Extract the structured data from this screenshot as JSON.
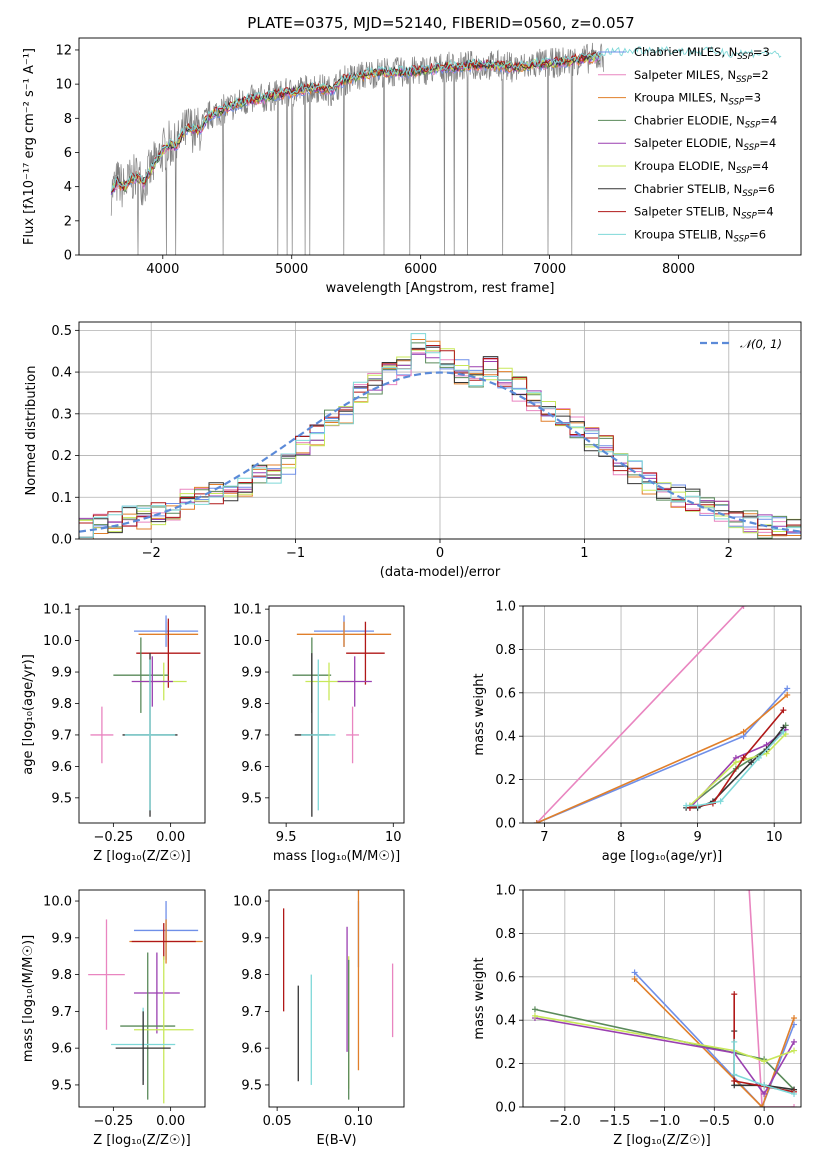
{
  "title": "PLATE=0375, MJD=52140, FIBERID=0560, z=0.057",
  "colors": {
    "chabrier_miles": "#6f8fe8",
    "salpeter_miles": "#e985c0",
    "kroupa_miles": "#e07f2a",
    "chabrier_elodie": "#5a8a5a",
    "salpeter_elodie": "#9a3fb0",
    "kroupa_elodie": "#c8e85a",
    "chabrier_stelib": "#333333",
    "salpeter_stelib": "#b01818",
    "kroupa_stelib": "#7ed8d8",
    "data": "#808080",
    "normal": "#5b8ad8"
  },
  "legend1": [
    {
      "key": "chabrier_miles",
      "label": "Chabrier MILES, N",
      "sub": "SSP",
      "suffix": "=3"
    },
    {
      "key": "salpeter_miles",
      "label": "Salpeter MILES, N",
      "sub": "SSP",
      "suffix": "=2"
    },
    {
      "key": "kroupa_miles",
      "label": "Kroupa MILES, N",
      "sub": "SSP",
      "suffix": "=3"
    },
    {
      "key": "chabrier_elodie",
      "label": "Chabrier ELODIE, N",
      "sub": "SSP",
      "suffix": "=4"
    },
    {
      "key": "salpeter_elodie",
      "label": "Salpeter ELODIE, N",
      "sub": "SSP",
      "suffix": "=4"
    },
    {
      "key": "kroupa_elodie",
      "label": "Kroupa ELODIE, N",
      "sub": "SSP",
      "suffix": "=4"
    },
    {
      "key": "chabrier_stelib",
      "label": "Chabrier STELIB, N",
      "sub": "SSP",
      "suffix": "=6"
    },
    {
      "key": "salpeter_stelib",
      "label": "Salpeter STELIB, N",
      "sub": "SSP",
      "suffix": "=4"
    },
    {
      "key": "kroupa_stelib",
      "label": "Kroupa STELIB, N",
      "sub": "SSP",
      "suffix": "=6"
    }
  ],
  "legend2": {
    "label": "𝒩(0, 1)"
  },
  "chart_data": [
    {
      "id": "spectrum",
      "type": "line",
      "xlabel": "wavelength [Angstrom, rest frame]",
      "ylabel": "Flux [fλ10⁻¹⁷ erg cm⁻² s⁻¹ A⁻¹]",
      "xlim": [
        3350,
        8950
      ],
      "ylim": [
        0,
        12.7
      ],
      "xticks": [
        4000,
        5000,
        6000,
        7000,
        8000
      ],
      "yticks": [
        0,
        2,
        4,
        6,
        8,
        10,
        12
      ],
      "x": [
        3600,
        3650,
        3700,
        3750,
        3800,
        3850,
        3900,
        3950,
        4000,
        4050,
        4100,
        4150,
        4200,
        4250,
        4300,
        4350,
        4400,
        4500,
        4600,
        4700,
        4800,
        4900,
        5000,
        5100,
        5200,
        5300,
        5400,
        5500,
        5600,
        5700,
        5800,
        5900,
        6000,
        6100,
        6200,
        6300,
        6400,
        6500,
        6600,
        6700,
        6800,
        6900,
        7000,
        7100,
        7200,
        7300,
        7400
      ],
      "model": [
        3.7,
        4.3,
        3.9,
        4.4,
        4.6,
        4.2,
        4.9,
        5.5,
        6.1,
        6.5,
        6.3,
        7.0,
        7.5,
        7.3,
        7.4,
        8.1,
        8.3,
        8.6,
        8.9,
        9.1,
        9.2,
        9.4,
        9.5,
        9.7,
        9.8,
        9.6,
        10.2,
        10.4,
        10.6,
        10.7,
        10.7,
        10.7,
        10.8,
        10.9,
        11.0,
        11.0,
        11.1,
        11.1,
        11.1,
        11.0,
        11.0,
        11.2,
        11.2,
        11.3,
        11.4,
        11.5,
        11.6
      ],
      "extended_model_x": [
        7400,
        7500,
        7600,
        7700,
        7800,
        7900,
        8000,
        8100,
        8200,
        8300,
        8400,
        8500,
        8600,
        8700,
        8800
      ],
      "extended_model_y": [
        11.7,
        11.8,
        11.8,
        11.9,
        11.9,
        11.9,
        11.8,
        11.8,
        11.8,
        11.8,
        11.7,
        11.7,
        11.7,
        11.7,
        11.6
      ]
    },
    {
      "id": "residuals",
      "type": "area",
      "xlabel": "(data-model)/error",
      "ylabel": "Normed distribution",
      "xlim": [
        -2.5,
        2.5
      ],
      "ylim": [
        0,
        0.52
      ],
      "xticks": [
        -2,
        -1,
        0,
        1,
        2
      ],
      "yticks": [
        0.0,
        0.1,
        0.2,
        0.3,
        0.4,
        0.5
      ],
      "bin_edges_start": -2.5,
      "bin_width": 0.1,
      "values": [
        0.02,
        0.03,
        0.04,
        0.05,
        0.05,
        0.06,
        0.06,
        0.09,
        0.1,
        0.11,
        0.11,
        0.13,
        0.15,
        0.16,
        0.18,
        0.22,
        0.25,
        0.28,
        0.3,
        0.35,
        0.37,
        0.4,
        0.42,
        0.47,
        0.45,
        0.43,
        0.4,
        0.39,
        0.41,
        0.38,
        0.36,
        0.33,
        0.31,
        0.3,
        0.27,
        0.24,
        0.22,
        0.18,
        0.16,
        0.13,
        0.12,
        0.1,
        0.09,
        0.08,
        0.07,
        0.05,
        0.04,
        0.03,
        0.03,
        0.02
      ]
    },
    {
      "id": "age_vs_Z",
      "type": "scatter",
      "xlabel": "Z [log₁₀(Z/Z☉)]",
      "ylabel": "age  [log₁₀(age/yr)]",
      "xlim": [
        -0.4,
        0.15
      ],
      "ylim": [
        9.42,
        10.11
      ],
      "xticks": [
        -0.25,
        0.0
      ],
      "xticklabels": [
        "−0.25",
        "0.00"
      ],
      "yticks": [
        9.5,
        9.6,
        9.7,
        9.8,
        9.9,
        10.0,
        10.1
      ],
      "points": [
        {
          "key": "chabrier_miles",
          "x": -0.02,
          "y": 10.03,
          "xerr": 0.14,
          "yerr": 0.05
        },
        {
          "key": "kroupa_miles",
          "x": -0.01,
          "y": 10.02,
          "xerr": 0.13,
          "yerr": 0.04
        },
        {
          "key": "salpeter_stelib",
          "x": -0.01,
          "y": 9.96,
          "xerr": 0.14,
          "yerr": 0.11
        },
        {
          "key": "chabrier_elodie",
          "x": -0.13,
          "y": 9.89,
          "xerr": 0.12,
          "yerr": 0.12
        },
        {
          "key": "kroupa_elodie",
          "x": -0.03,
          "y": 9.87,
          "xerr": 0.1,
          "yerr": 0.06
        },
        {
          "key": "salpeter_elodie",
          "x": -0.08,
          "y": 9.87,
          "xerr": 0.09,
          "yerr": 0.08
        },
        {
          "key": "chabrier_stelib",
          "x": -0.09,
          "y": 9.7,
          "xerr": 0.12,
          "yerr": 0.26
        },
        {
          "key": "kroupa_stelib",
          "x": -0.09,
          "y": 9.7,
          "xerr": 0.11,
          "yerr": 0.24
        },
        {
          "key": "salpeter_miles",
          "x": -0.3,
          "y": 9.7,
          "xerr": 0.05,
          "yerr": 0.09
        }
      ]
    },
    {
      "id": "age_vs_mass",
      "type": "scatter",
      "xlabel": "mass [log₁₀(M/M☉)]",
      "ylabel": "",
      "xlim": [
        9.42,
        10.05
      ],
      "ylim": [
        9.42,
        10.11
      ],
      "xticks": [
        9.5,
        10.0
      ],
      "yticks": [
        9.5,
        9.6,
        9.7,
        9.8,
        9.9,
        10.0,
        10.1
      ],
      "points": [
        {
          "key": "chabrier_miles",
          "x": 9.77,
          "y": 10.03,
          "xerr": 0.14,
          "yerr": 0.05
        },
        {
          "key": "kroupa_miles",
          "x": 9.77,
          "y": 10.02,
          "xerr": 0.22,
          "yerr": 0.04
        },
        {
          "key": "salpeter_stelib",
          "x": 9.87,
          "y": 9.96,
          "xerr": 0.09,
          "yerr": 0.1
        },
        {
          "key": "chabrier_elodie",
          "x": 9.62,
          "y": 9.89,
          "xerr": 0.09,
          "yerr": 0.12
        },
        {
          "key": "kroupa_elodie",
          "x": 9.7,
          "y": 9.87,
          "xerr": 0.11,
          "yerr": 0.06
        },
        {
          "key": "salpeter_elodie",
          "x": 9.82,
          "y": 9.87,
          "xerr": 0.08,
          "yerr": 0.08
        },
        {
          "key": "chabrier_stelib",
          "x": 9.62,
          "y": 9.7,
          "xerr": 0.08,
          "yerr": 0.26
        },
        {
          "key": "kroupa_stelib",
          "x": 9.65,
          "y": 9.7,
          "xerr": 0.08,
          "yerr": 0.24
        },
        {
          "key": "salpeter_miles",
          "x": 9.81,
          "y": 9.7,
          "xerr": 0.03,
          "yerr": 0.09
        }
      ]
    },
    {
      "id": "weight_vs_age",
      "type": "line",
      "xlabel": "age  [log₁₀(age/yr)]",
      "ylabel": "mass weight",
      "xlim": [
        6.72,
        10.35
      ],
      "ylim": [
        0,
        1.0
      ],
      "xticks": [
        7,
        8,
        9,
        10
      ],
      "yticks": [
        0.0,
        0.2,
        0.4,
        0.6,
        0.8,
        1.0
      ],
      "series": [
        {
          "key": "salpeter_miles",
          "x": [
            6.9,
            9.6
          ],
          "y": [
            0.0,
            1.0
          ]
        },
        {
          "key": "chabrier_miles",
          "x": [
            6.9,
            9.6,
            10.17
          ],
          "y": [
            0.0,
            0.4,
            0.62
          ]
        },
        {
          "key": "kroupa_miles",
          "x": [
            6.9,
            9.6,
            10.17
          ],
          "y": [
            0.0,
            0.42,
            0.59
          ]
        },
        {
          "key": "chabrier_elodie",
          "x": [
            8.9,
            9.5,
            9.9,
            10.15
          ],
          "y": [
            0.08,
            0.25,
            0.34,
            0.45
          ]
        },
        {
          "key": "salpeter_elodie",
          "x": [
            8.9,
            9.5,
            9.9,
            10.15
          ],
          "y": [
            0.07,
            0.3,
            0.36,
            0.43
          ]
        },
        {
          "key": "kroupa_elodie",
          "x": [
            8.9,
            9.5,
            9.9,
            10.15
          ],
          "y": [
            0.08,
            0.28,
            0.32,
            0.41
          ]
        },
        {
          "key": "chabrier_stelib",
          "x": [
            8.85,
            9.0,
            9.2,
            9.7,
            9.9,
            10.12
          ],
          "y": [
            0.07,
            0.07,
            0.1,
            0.28,
            0.34,
            0.44
          ]
        },
        {
          "key": "salpeter_stelib",
          "x": [
            8.9,
            9.2,
            9.6,
            10.12
          ],
          "y": [
            0.07,
            0.09,
            0.3,
            0.52
          ]
        },
        {
          "key": "kroupa_stelib",
          "x": [
            8.85,
            9.0,
            9.3,
            9.8,
            10.12
          ],
          "y": [
            0.08,
            0.08,
            0.1,
            0.3,
            0.42
          ]
        }
      ]
    },
    {
      "id": "mass_vs_Z",
      "type": "scatter",
      "xlabel": "Z [log₁₀(Z/Z☉)]",
      "ylabel": "mass [log₁₀(M/M☉)]",
      "xlim": [
        -0.4,
        0.15
      ],
      "ylim": [
        9.44,
        10.03
      ],
      "xticks": [
        -0.25,
        0.0
      ],
      "xticklabels": [
        "−0.25",
        "0.00"
      ],
      "yticks": [
        9.5,
        9.6,
        9.7,
        9.8,
        9.9,
        10.0
      ],
      "points": [
        {
          "key": "chabrier_miles",
          "x": -0.02,
          "y": 9.92,
          "xerr": 0.14,
          "yerr": 0.08
        },
        {
          "key": "kroupa_miles",
          "x": -0.02,
          "y": 9.89,
          "xerr": 0.16,
          "yerr": 0.06
        },
        {
          "key": "salpeter_stelib",
          "x": -0.03,
          "y": 9.89,
          "xerr": 0.14,
          "yerr": 0.05
        },
        {
          "key": "salpeter_miles",
          "x": -0.28,
          "y": 9.8,
          "xerr": 0.08,
          "yerr": 0.15
        },
        {
          "key": "salpeter_elodie",
          "x": -0.06,
          "y": 9.75,
          "xerr": 0.1,
          "yerr": 0.11
        },
        {
          "key": "chabrier_elodie",
          "x": -0.1,
          "y": 9.66,
          "xerr": 0.12,
          "yerr": 0.2
        },
        {
          "key": "kroupa_elodie",
          "x": -0.03,
          "y": 9.65,
          "xerr": 0.13,
          "yerr": 0.2
        },
        {
          "key": "kroupa_stelib",
          "x": -0.12,
          "y": 9.61,
          "xerr": 0.14,
          "yerr": 0.1
        },
        {
          "key": "chabrier_stelib",
          "x": -0.12,
          "y": 9.6,
          "xerr": 0.12,
          "yerr": 0.1
        }
      ]
    },
    {
      "id": "mass_vs_ebv",
      "type": "scatter",
      "xlabel": "E(B-V)",
      "ylabel": "",
      "xlim": [
        0.045,
        0.128
      ],
      "ylim": [
        9.44,
        10.03
      ],
      "xticks": [
        0.05,
        0.1
      ],
      "xticklabels": [
        "0.05",
        "0.10"
      ],
      "yticks": [
        9.5,
        9.6,
        9.7,
        9.8,
        9.9,
        10.0
      ],
      "points": [
        {
          "key": "salpeter_stelib",
          "x": 0.054,
          "y": 9.84,
          "xerr": 0,
          "yerr": 0.14
        },
        {
          "key": "chabrier_stelib",
          "x": 0.063,
          "y": 9.64,
          "xerr": 0,
          "yerr": 0.13
        },
        {
          "key": "kroupa_stelib",
          "x": 0.071,
          "y": 9.65,
          "xerr": 0,
          "yerr": 0.15
        },
        {
          "key": "salpeter_elodie",
          "x": 0.093,
          "y": 9.76,
          "xerr": 0,
          "yerr": 0.17
        },
        {
          "key": "kroupa_elodie",
          "x": 0.094,
          "y": 9.67,
          "xerr": 0,
          "yerr": 0.18
        },
        {
          "key": "chabrier_elodie",
          "x": 0.094,
          "y": 9.65,
          "xerr": 0,
          "yerr": 0.19
        },
        {
          "key": "chabrier_miles",
          "x": 0.1,
          "y": 9.91,
          "xerr": 0,
          "yerr": 0.09
        },
        {
          "key": "kroupa_miles",
          "x": 0.1,
          "y": 9.85,
          "xerr": 0,
          "yerr": 0.31
        },
        {
          "key": "salpeter_miles",
          "x": 0.121,
          "y": 9.73,
          "xerr": 0,
          "yerr": 0.1
        }
      ]
    },
    {
      "id": "weight_vs_Z",
      "type": "line",
      "xlabel": "Z [log₁₀(Z/Z☉)]",
      "ylabel": "mass weight",
      "xlim": [
        -2.42,
        0.37
      ],
      "ylim": [
        0,
        1.0
      ],
      "xticks": [
        -2.0,
        -1.5,
        -1.0,
        -0.5,
        0.0
      ],
      "xticklabels": [
        "−2.0",
        "−1.5",
        "−1.0",
        "−0.5",
        "0.0"
      ],
      "yticks": [
        0.0,
        0.2,
        0.4,
        0.6,
        0.8,
        1.0
      ],
      "series": [
        {
          "key": "salpeter_miles",
          "x": [
            -0.15,
            -0.02,
            0.3
          ],
          "y": [
            1.0,
            0.0,
            0.0
          ]
        },
        {
          "key": "chabrier_miles",
          "x": [
            -1.3,
            -0.02,
            0.3
          ],
          "y": [
            0.62,
            0.0,
            0.38
          ]
        },
        {
          "key": "kroupa_miles",
          "x": [
            -1.3,
            -0.02,
            0.3
          ],
          "y": [
            0.59,
            0.0,
            0.41
          ]
        },
        {
          "key": "chabrier_elodie",
          "x": [
            -2.3,
            -0.3,
            0.0,
            0.3
          ],
          "y": [
            0.45,
            0.25,
            0.22,
            0.08
          ]
        },
        {
          "key": "salpeter_elodie",
          "x": [
            -2.3,
            -0.3,
            0.0,
            0.3
          ],
          "y": [
            0.41,
            0.25,
            0.06,
            0.3
          ]
        },
        {
          "key": "kroupa_elodie",
          "x": [
            -2.3,
            -0.3,
            0.0,
            0.3
          ],
          "y": [
            0.42,
            0.26,
            0.21,
            0.26
          ]
        },
        {
          "key": "chabrier_stelib",
          "x": [
            -0.3,
            -0.3,
            0.0,
            0.3
          ],
          "y": [
            0.35,
            0.1,
            0.1,
            0.08
          ]
        },
        {
          "key": "salpeter_stelib",
          "x": [
            -0.3,
            -0.3,
            0.3
          ],
          "y": [
            0.52,
            0.12,
            0.07
          ]
        },
        {
          "key": "kroupa_stelib",
          "x": [
            -0.3,
            -0.3,
            0.0,
            0.3
          ],
          "y": [
            0.3,
            0.15,
            0.1,
            0.06
          ]
        }
      ]
    }
  ]
}
